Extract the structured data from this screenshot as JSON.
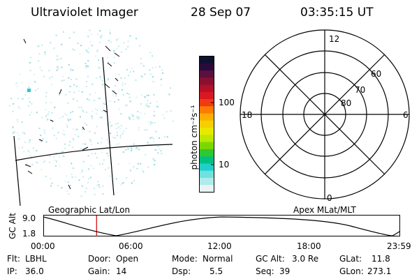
{
  "header": {
    "instrument": "Ultraviolet Imager",
    "date": "28 Sep 07",
    "time": "03:35:15 UT"
  },
  "colorbar": {
    "unit_label": "photon cm⁻²s⁻¹",
    "tick_labels": [
      "100",
      "10"
    ],
    "colors_top_to_bottom": [
      "#101030",
      "#2a0a3a",
      "#5a1040",
      "#8a1030",
      "#b4102a",
      "#d81822",
      "#f03a12",
      "#ff7a00",
      "#ffae00",
      "#f5d000",
      "#e8e800",
      "#bde800",
      "#7ad800",
      "#30c830",
      "#00c080",
      "#20d0c8",
      "#70e0e0",
      "#b0eaea",
      "#e8f4f4"
    ]
  },
  "polar_plot": {
    "mlt_labels": {
      "top": "12",
      "bottom": "0",
      "left": "18",
      "right": "6"
    },
    "lat_labels": [
      "60",
      "70",
      "80"
    ]
  },
  "left_panel": {
    "label": "Geographic Lat/Lon"
  },
  "timeline": {
    "right_label": "Apex MLat/MLT",
    "axis_title": "GC Alt",
    "y_ticks": [
      "9.0",
      "1.8"
    ],
    "x_ticks": [
      "00:00",
      "06:00",
      "12:00",
      "18:00",
      "23:59"
    ],
    "marker_time_hours": 3.59,
    "marker_color": "#cc0000"
  },
  "info": {
    "row1": {
      "flt_label": "Flt:",
      "flt_value": "LBHL",
      "door_label": "Door:",
      "door_value": "Open",
      "mode_label": "Mode:",
      "mode_value": "Normal",
      "gcalt_label": "GC Alt:",
      "gcalt_value": "3.0 Re",
      "glat_label": "GLat:",
      "glat_value": "11.8"
    },
    "row2": {
      "ip_label": "IP:",
      "ip_value": "36.0",
      "gain_label": "Gain:",
      "gain_value": "14",
      "dsp_label": "Dsp:",
      "dsp_value": "5.5",
      "seq_label": "Seq:",
      "seq_value": "39",
      "glon_label": "GLon:",
      "glon_value": "273.1"
    }
  }
}
